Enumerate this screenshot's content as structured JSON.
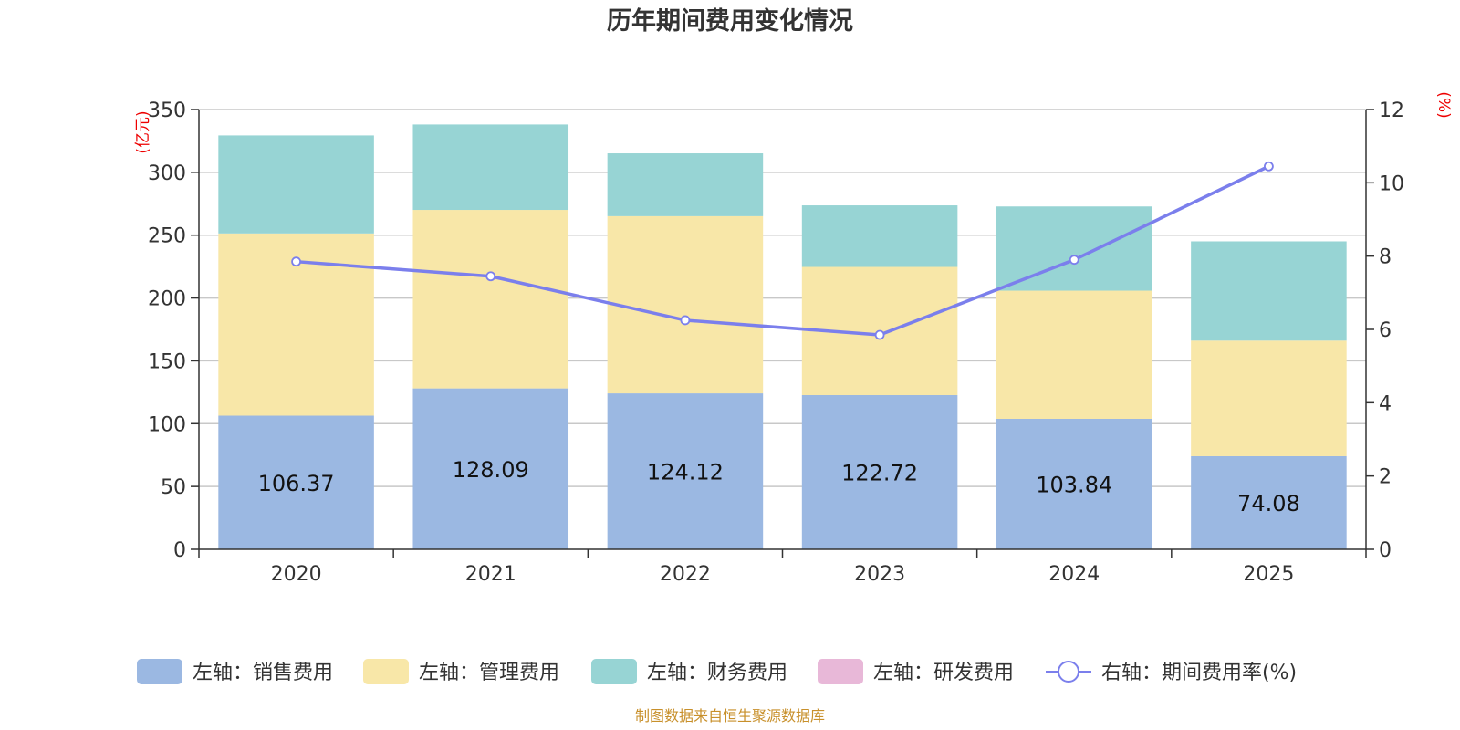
{
  "chart_data": {
    "type": "bar",
    "title": "历年期间费用变化情况",
    "categories": [
      "2020",
      "2021",
      "2022",
      "2023",
      "2024",
      "2025"
    ],
    "left_axis": {
      "unit": "(亿元)",
      "ylim": [
        0,
        350
      ],
      "ticks": [
        0,
        50,
        100,
        150,
        200,
        250,
        300,
        350
      ]
    },
    "right_axis": {
      "unit": "(%)",
      "ylim": [
        0,
        12
      ],
      "ticks": [
        0,
        2,
        4,
        6,
        8,
        10,
        12
      ]
    },
    "series": [
      {
        "name": "左轴：销售费用",
        "type": "bar",
        "axis": "left",
        "color": "#9bb8e2",
        "values": [
          106.37,
          128.09,
          124.12,
          122.72,
          103.84,
          74.08
        ],
        "labels": [
          "106.37",
          "128.09",
          "124.12",
          "122.72",
          "103.84",
          "74.08"
        ]
      },
      {
        "name": "左轴：管理费用",
        "type": "bar",
        "axis": "left",
        "color": "#f8e7a8",
        "values": [
          145,
          142,
          141,
          102,
          102,
          92
        ]
      },
      {
        "name": "左轴：财务费用",
        "type": "bar",
        "axis": "left",
        "color": "#97d4d4",
        "values": [
          78,
          68,
          50,
          49,
          67,
          79
        ]
      },
      {
        "name": "左轴：研发费用",
        "type": "bar",
        "axis": "left",
        "color": "#e8b8d8",
        "values": [
          0,
          0,
          0,
          0,
          0,
          0
        ]
      },
      {
        "name": "右轴：期间费用率(%)",
        "type": "line",
        "axis": "right",
        "color": "#7b7fec",
        "values": [
          7.85,
          7.45,
          6.25,
          5.85,
          7.9,
          10.45
        ]
      }
    ],
    "grid": true,
    "legend_position": "bottom"
  },
  "source_text": "制图数据来自恒生聚源数据库"
}
